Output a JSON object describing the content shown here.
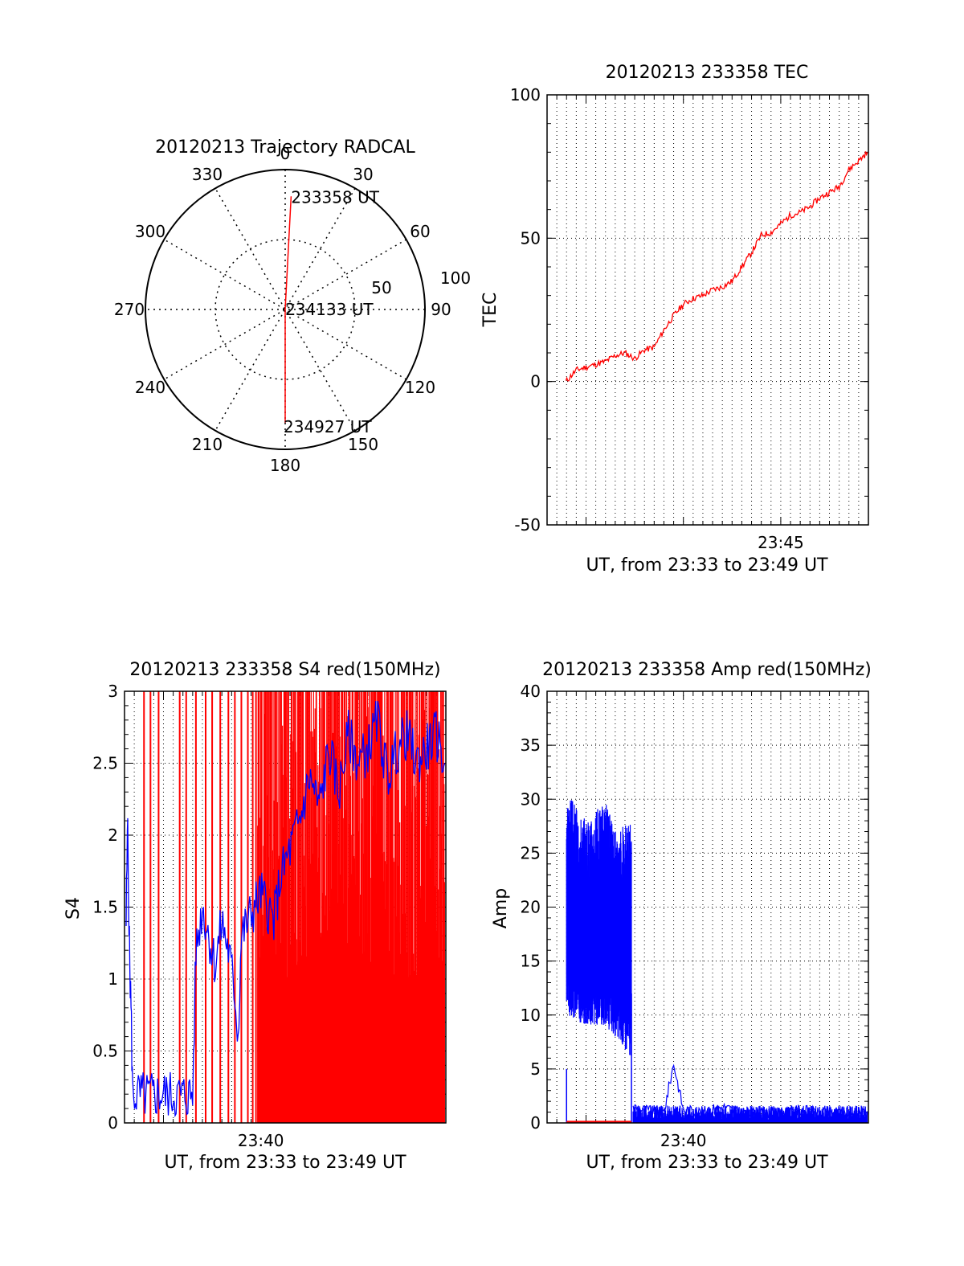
{
  "colors": {
    "primary": "#ff0000",
    "secondary": "#0000ff",
    "axis": "#000000",
    "grid": "#000000"
  },
  "chart_data": [
    {
      "type": "polar",
      "title": "20120213 Trajectory RADCAL",
      "angle_ticks": [
        "0",
        "30",
        "60",
        "90",
        "120",
        "150",
        "180",
        "210",
        "240",
        "270",
        "300",
        "330"
      ],
      "radius_ticks": [
        "50",
        "100"
      ],
      "radius_range": [
        0,
        100
      ],
      "grid": true,
      "track": [
        {
          "label": "233358 UT",
          "azimuth": 3,
          "zenith": 90
        },
        {
          "label": "234133 UT",
          "azimuth": 0,
          "zenith": 0
        },
        {
          "label": "234927 UT",
          "azimuth": 180,
          "zenith": 90
        }
      ]
    },
    {
      "type": "line",
      "title": "20120213 233358 TEC",
      "xlabel": "UT, from 23:33 to 23:49 UT",
      "ylabel": "TEC",
      "xlim": [
        "23:33:00",
        "23:49:30"
      ],
      "ylim": [
        -50,
        100
      ],
      "yticks": [
        "-50",
        "0",
        "50",
        "100"
      ],
      "xticks": [
        "23:45"
      ],
      "grid": true,
      "series": [
        {
          "color": "red",
          "x": [
            "23:33:58",
            "23:34:30",
            "23:35:00",
            "23:36:00",
            "23:36:30",
            "23:37:00",
            "23:37:30",
            "23:38:00",
            "23:38:30",
            "23:39:00",
            "23:39:30",
            "23:40:00",
            "23:40:30",
            "23:41:00",
            "23:41:30",
            "23:42:00",
            "23:42:30",
            "23:43:00",
            "23:43:30",
            "23:44:00",
            "23:44:30",
            "23:45:00",
            "23:45:30",
            "23:46:00",
            "23:46:30",
            "23:47:00",
            "23:47:30",
            "23:48:00",
            "23:48:30",
            "23:49:00",
            "23:49:27"
          ],
          "y": [
            0,
            4,
            5,
            7,
            9,
            10,
            8,
            11,
            12,
            18,
            23,
            27,
            29,
            30,
            32,
            33,
            35,
            40,
            45,
            51,
            52,
            55,
            58,
            59,
            61,
            64,
            66,
            68,
            74,
            77,
            80
          ]
        }
      ]
    },
    {
      "type": "line",
      "title": "20120213 233358 S4 red(150MHz)",
      "xlabel": "UT, from 23:33 to 23:49 UT",
      "ylabel": "S4",
      "xlim": [
        "23:33:00",
        "23:49:30"
      ],
      "ylim": [
        0,
        3
      ],
      "yticks": [
        "0",
        "0.5",
        "1",
        "1.5",
        "2",
        "2.5",
        "3"
      ],
      "xticks": [
        "23:40"
      ],
      "grid": true,
      "series": [
        {
          "color": "blue",
          "x": [
            "23:33:05",
            "23:33:10",
            "23:33:15",
            "23:33:20",
            "23:33:25",
            "23:34:00",
            "23:35:00",
            "23:36:00",
            "23:36:30",
            "23:36:40",
            "23:37:00",
            "23:37:20",
            "23:37:40",
            "23:38:00",
            "23:38:20",
            "23:38:40",
            "23:38:50",
            "23:39:00",
            "23:39:20",
            "23:39:40",
            "23:40:00",
            "23:40:20",
            "23:40:40",
            "23:41:00",
            "23:41:30",
            "23:42:00",
            "23:42:30",
            "23:43:00",
            "23:43:30",
            "23:44:00",
            "23:44:30",
            "23:45:00",
            "23:45:30",
            "23:46:00",
            "23:46:30",
            "23:47:00",
            "23:47:30",
            "23:48:00",
            "23:48:30",
            "23:49:00",
            "23:49:27"
          ],
          "y": [
            1.4,
            2.1,
            1.2,
            0.8,
            0.2,
            0.19,
            0.2,
            0.19,
            0.2,
            1.2,
            1.5,
            1.3,
            1.1,
            1.4,
            1.2,
            0.9,
            0.6,
            1.3,
            1.4,
            1.5,
            1.6,
            1.5,
            1.4,
            1.7,
            1.9,
            2.1,
            2.4,
            2.2,
            2.6,
            2.3,
            2.7,
            2.5,
            2.6,
            2.8,
            2.4,
            2.6,
            2.7,
            2.5,
            2.6,
            2.7,
            2.5
          ]
        }
      ],
      "red_bars_x": [
        "23:34:00",
        "23:34:20",
        "23:34:45",
        "23:35:50",
        "23:36:10",
        "23:36:40",
        "23:37:10",
        "23:37:30",
        "23:37:55",
        "23:38:20",
        "23:38:40",
        "23:39:00",
        "23:39:20",
        "23:39:35",
        "23:39:45"
      ]
    },
    {
      "type": "line",
      "title": "20120213 233358 Amp red(150MHz)",
      "xlabel": "UT, from 23:33 to 23:49 UT",
      "ylabel": "Amp",
      "xlim": [
        "23:33:00",
        "23:49:30"
      ],
      "ylim": [
        0,
        40
      ],
      "yticks": [
        "0",
        "5",
        "10",
        "15",
        "20",
        "25",
        "30",
        "35",
        "40"
      ],
      "xticks": [
        "23:40"
      ],
      "grid": true,
      "series": [
        {
          "color": "blue",
          "name": "",
          "envelope": {
            "x": [
              "23:34:00",
              "23:35:00",
              "23:36:00",
              "23:36:30",
              "23:37:20"
            ],
            "high": [
              31,
              28,
              30,
              27,
              28
            ],
            "low": [
              12,
              11,
              11,
              10,
              8
            ]
          }
        },
        {
          "color": "blue",
          "x": [
            "23:37:25",
            "23:38:00",
            "23:39:00",
            "23:39:30",
            "23:40:00",
            "23:41:00",
            "23:42:00",
            "23:43:00",
            "23:44:00",
            "23:45:00",
            "23:46:00",
            "23:47:00",
            "23:48:00",
            "23:49:00",
            "23:49:27"
          ],
          "y": [
            1.5,
            1.2,
            1.0,
            5.5,
            1.2,
            1.0,
            1.5,
            0.9,
            1.0,
            0.9,
            1.2,
            0.9,
            1.0,
            0.8,
            0.9
          ]
        },
        {
          "color": "red",
          "x": [
            "23:34:00",
            "23:37:20"
          ],
          "y": [
            0.1,
            0.1
          ]
        }
      ]
    }
  ]
}
